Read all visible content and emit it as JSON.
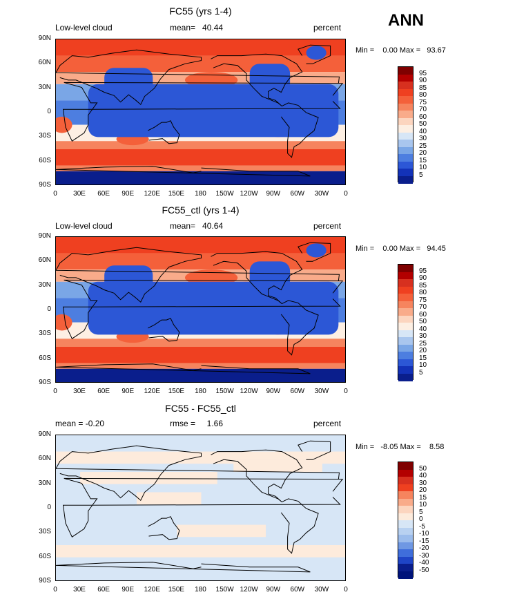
{
  "season": "ANN",
  "x_ticks": [
    "0",
    "30E",
    "60E",
    "90E",
    "120E",
    "150E",
    "180",
    "150W",
    "120W",
    "90W",
    "60W",
    "30W",
    "0"
  ],
  "y_ticks": [
    "90N",
    "60N",
    "30N",
    "0",
    "30S",
    "60S",
    "90S"
  ],
  "panels": [
    {
      "title": "FC55 (yrs 1-4)",
      "left_label": "Low-level cloud",
      "mid_label": "mean=   40.44",
      "units": "percent",
      "minmax": "Min =    0.00 Max =   93.67",
      "colorbar": [
        "95",
        "90",
        "85",
        "80",
        "75",
        "70",
        "60",
        "50",
        "40",
        "30",
        "25",
        "20",
        "15",
        "10",
        "5"
      ]
    },
    {
      "title": "FC55_ctl (yrs 1-4)",
      "left_label": "Low-level cloud",
      "mid_label": "mean=   40.64",
      "units": "percent",
      "minmax": "Min =    0.00 Max =   94.45",
      "colorbar": [
        "95",
        "90",
        "85",
        "80",
        "75",
        "70",
        "60",
        "50",
        "40",
        "30",
        "25",
        "20",
        "15",
        "10",
        "5"
      ]
    },
    {
      "title": "FC55 - FC55_ctl",
      "left_label": "mean =   -0.20",
      "mid_label": "rmse =     1.66",
      "units": "percent",
      "minmax": "Min =   -8.05 Max =    8.58",
      "colorbar": [
        "50",
        "40",
        "30",
        "20",
        "15",
        "10",
        "5",
        "0",
        "-5",
        "-10",
        "-15",
        "-20",
        "-30",
        "-40",
        "-50"
      ]
    }
  ],
  "colors": {
    "abs_scale": [
      "#7f0000",
      "#b30000",
      "#d7301f",
      "#ef4020",
      "#f4603a",
      "#f6845e",
      "#f9ab8a",
      "#fcd5bf",
      "#fdefe3",
      "#d7e6f6",
      "#a9c6ee",
      "#7aa6e6",
      "#4d7ee0",
      "#2c57d6",
      "#1332b8",
      "#0a1e8c",
      "#00137a"
    ],
    "diff_scale": [
      "#7f0000",
      "#b30000",
      "#d7301f",
      "#ef4020",
      "#f6845e",
      "#f9ab8a",
      "#fcd5bf",
      "#fdebdc",
      "#d7e6f6",
      "#b8d1f1",
      "#9bbcec",
      "#6f98e3",
      "#3f6edb",
      "#1f45c6",
      "#0a1e8c",
      "#00137a"
    ]
  },
  "chart_data": [
    {
      "type": "heatmap",
      "title": "FC55 (yrs 1-4)",
      "variable": "Low-level cloud",
      "units": "percent",
      "mean": 40.44,
      "min": 0.0,
      "max": 93.67,
      "x_range": [
        0,
        360
      ],
      "y_range": [
        -90,
        90
      ],
      "contour_levels": [
        5,
        10,
        15,
        20,
        25,
        30,
        40,
        50,
        60,
        70,
        75,
        80,
        85,
        90,
        95
      ]
    },
    {
      "type": "heatmap",
      "title": "FC55_ctl (yrs 1-4)",
      "variable": "Low-level cloud",
      "units": "percent",
      "mean": 40.64,
      "min": 0.0,
      "max": 94.45,
      "x_range": [
        0,
        360
      ],
      "y_range": [
        -90,
        90
      ],
      "contour_levels": [
        5,
        10,
        15,
        20,
        25,
        30,
        40,
        50,
        60,
        70,
        75,
        80,
        85,
        90,
        95
      ]
    },
    {
      "type": "heatmap",
      "title": "FC55 - FC55_ctl",
      "units": "percent",
      "mean": -0.2,
      "rmse": 1.66,
      "min": -8.05,
      "max": 8.58,
      "x_range": [
        0,
        360
      ],
      "y_range": [
        -90,
        90
      ],
      "contour_levels": [
        -50,
        -40,
        -30,
        -20,
        -15,
        -10,
        -5,
        0,
        5,
        10,
        15,
        20,
        30,
        40,
        50
      ]
    }
  ]
}
